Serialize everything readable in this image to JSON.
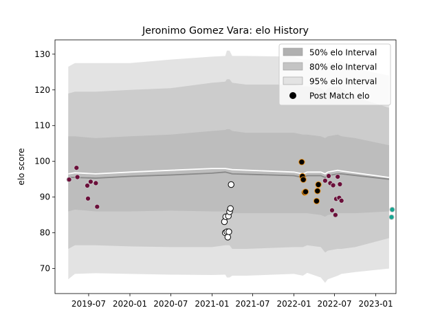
{
  "chart_data": {
    "type": "scatter",
    "title": "Jeronimo Gomez Vara: elo History",
    "xlabel": "",
    "ylabel": "elo score",
    "xlim": [
      "2019-02-01",
      "2023-04-01"
    ],
    "ylim": [
      63,
      134
    ],
    "x_ticks": [
      "2019-07",
      "2020-01",
      "2020-07",
      "2021-01",
      "2021-07",
      "2022-01",
      "2022-07",
      "2023-01"
    ],
    "y_ticks": [
      70,
      80,
      90,
      100,
      110,
      120,
      130
    ],
    "grid": false,
    "legend_position": "top-right",
    "legend": [
      {
        "label": "50% elo Interval",
        "color": "#b0b0b0"
      },
      {
        "label": "80% elo Interval",
        "color": "#c4c4c4"
      },
      {
        "label": "95% elo Interval",
        "color": "#e3e3e3"
      },
      {
        "label": "Post Match elo",
        "color": "#000000"
      }
    ],
    "bands": [
      {
        "name": "95% elo Interval",
        "color": "#e3e3e3",
        "x": [
          "2019-04-01",
          "2019-05-01",
          "2019-08-01",
          "2020-01-01",
          "2020-07-01",
          "2021-01-01",
          "2021-03-01",
          "2021-03-08",
          "2021-03-20",
          "2021-04-01",
          "2021-06-01",
          "2022-01-01",
          "2022-02-10",
          "2022-03-01",
          "2022-05-01",
          "2022-05-20",
          "2022-06-01",
          "2022-07-15",
          "2022-08-01",
          "2022-10-01",
          "2023-03-01"
        ],
        "upper": [
          126.5,
          127.5,
          127.5,
          127.5,
          128.5,
          129.3,
          129.5,
          131.0,
          131.0,
          129.5,
          129.5,
          129.3,
          128.5,
          128.5,
          128.0,
          127.2,
          127.5,
          128.0,
          128.0,
          126.0,
          124.0
        ],
        "lower": [
          67.0,
          68.5,
          68.7,
          68.5,
          68.3,
          68.2,
          68.3,
          67.5,
          67.5,
          68.0,
          68.0,
          68.5,
          68.0,
          68.8,
          67.5,
          66.0,
          67.0,
          68.0,
          68.5,
          69.0,
          70.0
        ]
      },
      {
        "name": "80% elo Interval",
        "color": "#cccccc",
        "x": [
          "2019-04-01",
          "2019-05-01",
          "2019-08-01",
          "2020-01-01",
          "2020-07-01",
          "2021-01-01",
          "2021-03-01",
          "2021-03-08",
          "2021-03-20",
          "2021-04-01",
          "2021-06-01",
          "2022-01-01",
          "2022-02-10",
          "2022-03-01",
          "2022-05-01",
          "2022-05-20",
          "2022-06-01",
          "2022-07-15",
          "2022-08-01",
          "2022-10-01",
          "2023-03-01"
        ],
        "upper": [
          119.0,
          119.5,
          119.5,
          120.0,
          120.5,
          122.0,
          122.3,
          123.0,
          123.0,
          122.0,
          121.5,
          121.5,
          121.0,
          121.0,
          120.5,
          119.5,
          120.5,
          121.0,
          120.5,
          118.0,
          115.0
        ],
        "lower": [
          75.5,
          76.5,
          76.5,
          76.2,
          76.0,
          76.0,
          76.5,
          76.5,
          76.5,
          75.5,
          75.5,
          76.0,
          76.0,
          76.5,
          76.0,
          74.5,
          75.0,
          75.5,
          75.5,
          76.0,
          78.5
        ]
      },
      {
        "name": "50% elo Interval",
        "color": "#bdbdbd",
        "x": [
          "2019-04-01",
          "2019-05-01",
          "2019-08-01",
          "2020-01-01",
          "2020-07-01",
          "2021-01-01",
          "2021-03-01",
          "2021-03-08",
          "2021-03-20",
          "2021-04-01",
          "2021-06-01",
          "2022-01-01",
          "2022-02-10",
          "2022-03-01",
          "2022-05-01",
          "2022-05-20",
          "2022-06-01",
          "2022-07-15",
          "2022-08-01",
          "2022-10-01",
          "2023-03-01"
        ],
        "upper": [
          107.0,
          107.0,
          106.5,
          107.0,
          107.5,
          108.5,
          108.8,
          109.0,
          109.0,
          108.5,
          108.0,
          108.0,
          107.5,
          107.5,
          107.0,
          106.5,
          107.0,
          107.5,
          107.0,
          106.5,
          104.5
        ],
        "lower": [
          86.0,
          86.5,
          86.0,
          86.0,
          86.2,
          86.0,
          86.0,
          86.0,
          86.0,
          85.5,
          85.5,
          85.5,
          85.5,
          85.5,
          85.0,
          84.5,
          85.0,
          85.5,
          85.5,
          85.5,
          86.0
        ]
      }
    ],
    "lines": [
      {
        "color": "#888888",
        "x": [
          "2019-04-01",
          "2019-05-01",
          "2019-08-01",
          "2020-01-01",
          "2020-07-01",
          "2021-01-01",
          "2021-03-01",
          "2021-04-01",
          "2022-01-01",
          "2022-02-10",
          "2022-03-01",
          "2022-05-01",
          "2022-05-20",
          "2022-06-01",
          "2022-07-15",
          "2022-08-01",
          "2023-03-01"
        ],
        "y": [
          95.5,
          95.5,
          95.3,
          95.8,
          96.2,
          96.7,
          97.0,
          96.5,
          96.0,
          95.5,
          96.0,
          96.0,
          95.5,
          96.0,
          96.5,
          96.5,
          95.0
        ]
      },
      {
        "color": "#ffffff",
        "x": [
          "2019-04-01",
          "2019-05-01",
          "2019-08-01",
          "2020-01-01",
          "2020-07-01",
          "2021-01-01",
          "2021-03-01",
          "2021-04-01",
          "2022-01-01",
          "2022-02-10",
          "2022-03-01",
          "2022-05-01",
          "2022-05-20",
          "2022-06-01",
          "2022-07-15",
          "2022-08-01",
          "2023-03-01"
        ],
        "y": [
          96.5,
          96.8,
          96.5,
          97.0,
          97.5,
          98.0,
          98.0,
          97.7,
          97.0,
          96.5,
          97.0,
          97.0,
          96.5,
          97.0,
          97.5,
          97.3,
          95.5
        ]
      }
    ],
    "series": [
      {
        "fill": "#6b0f3a",
        "edge": "#c8c8c8",
        "points": [
          [
            "2019-04-05",
            94.9
          ],
          [
            "2019-05-08",
            98.2
          ],
          [
            "2019-05-12",
            95.6
          ],
          [
            "2019-06-25",
            93.2
          ],
          [
            "2019-06-28",
            89.6
          ],
          [
            "2019-07-10",
            94.3
          ],
          [
            "2019-08-02",
            93.9
          ],
          [
            "2019-08-08",
            87.3
          ],
          [
            "2022-06-05",
            95.9
          ],
          [
            "2022-06-12",
            93.9
          ],
          [
            "2022-06-20",
            86.3
          ],
          [
            "2022-06-25",
            93.3
          ],
          [
            "2022-07-05",
            85.0
          ],
          [
            "2022-07-08",
            89.5
          ],
          [
            "2022-07-15",
            95.7
          ],
          [
            "2022-07-22",
            89.8
          ],
          [
            "2022-07-25",
            93.6
          ],
          [
            "2022-08-01",
            89.0
          ],
          [
            "2022-05-20",
            94.6
          ]
        ]
      },
      {
        "fill": "#ffffff",
        "edge": "#000000",
        "points": [
          [
            "2021-02-25",
            83.1
          ],
          [
            "2021-03-01",
            80.0
          ],
          [
            "2021-03-03",
            84.5
          ],
          [
            "2021-03-08",
            80.3
          ],
          [
            "2021-03-12",
            78.8
          ],
          [
            "2021-03-15",
            84.7
          ],
          [
            "2021-03-17",
            80.3
          ],
          [
            "2021-03-20",
            85.9
          ],
          [
            "2021-03-24",
            86.8
          ],
          [
            "2021-03-27",
            93.5
          ]
        ]
      },
      {
        "fill": "#000000",
        "edge": "#e8921e",
        "points": [
          [
            "2022-02-05",
            99.8
          ],
          [
            "2022-02-08",
            95.8
          ],
          [
            "2022-02-12",
            94.9
          ],
          [
            "2022-02-18",
            91.3
          ],
          [
            "2022-02-22",
            91.5
          ],
          [
            "2022-04-12",
            88.9
          ],
          [
            "2022-04-16",
            91.7
          ],
          [
            "2022-04-20",
            93.5
          ]
        ]
      },
      {
        "fill": "#17a591",
        "edge": "#c8c8c8",
        "points": [
          [
            "2023-03-15",
            86.5
          ],
          [
            "2023-03-12",
            84.4
          ]
        ]
      }
    ]
  }
}
